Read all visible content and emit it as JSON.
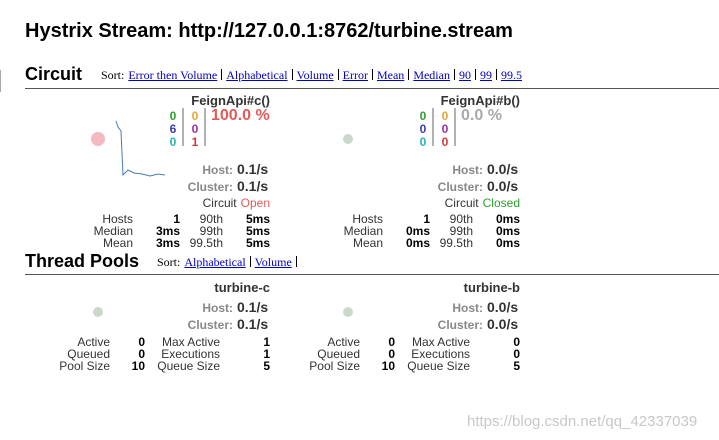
{
  "header": {
    "title": "Hystrix Stream: http://127.0.0.1:8762/turbine.stream"
  },
  "circuit": {
    "title": "Circuit",
    "sort_label": "Sort:",
    "sort_links": [
      "Error then Volume",
      "Alphabetical",
      "Volume",
      "Error",
      "Mean",
      "Median",
      "90",
      "99",
      "99.5"
    ],
    "cards": [
      {
        "name": "FeignApi#c()",
        "counts_a": [
          0,
          6,
          0
        ],
        "counts_b": [
          0,
          0,
          1
        ],
        "error_rate": "100.0 %",
        "host_label": "Host:",
        "host": "0.1/s",
        "cluster_label": "Cluster:",
        "cluster": "0.1/s",
        "circuit_label": "Circuit",
        "circuit_status": "Open",
        "stats": [
          [
            "Hosts",
            1,
            "90th",
            "5ms"
          ],
          [
            "Median",
            "3ms",
            "99th",
            "5ms"
          ],
          [
            "Mean",
            "3ms",
            "99.5th",
            "5ms"
          ]
        ]
      },
      {
        "name": "FeignApi#b()",
        "counts_a": [
          0,
          0,
          0
        ],
        "counts_b": [
          0,
          0,
          0
        ],
        "error_rate": "0.0 %",
        "host_label": "Host:",
        "host": "0.0/s",
        "cluster_label": "Cluster:",
        "cluster": "0.0/s",
        "circuit_label": "Circuit",
        "circuit_status": "Closed",
        "stats": [
          [
            "Hosts",
            1,
            "90th",
            "0ms"
          ],
          [
            "Median",
            "0ms",
            "99th",
            "0ms"
          ],
          [
            "Mean",
            "0ms",
            "99.5th",
            "0ms"
          ]
        ]
      }
    ]
  },
  "thread_pools": {
    "title": "Thread Pools",
    "sort_label": "Sort:",
    "sort_links": [
      "Alphabetical",
      "Volume"
    ],
    "cards": [
      {
        "name": "turbine-c",
        "host_label": "Host:",
        "host": "0.1/s",
        "cluster_label": "Cluster:",
        "cluster": "0.1/s",
        "stats": [
          [
            "Active",
            0,
            "Max Active",
            1
          ],
          [
            "Queued",
            0,
            "Executions",
            1
          ],
          [
            "Pool Size",
            10,
            "Queue Size",
            5
          ]
        ]
      },
      {
        "name": "turbine-b",
        "host_label": "Host:",
        "host": "0.0/s",
        "cluster_label": "Cluster:",
        "cluster": "0.0/s",
        "stats": [
          [
            "Active",
            0,
            "Max Active",
            0
          ],
          [
            "Queued",
            0,
            "Executions",
            0
          ],
          [
            "Pool Size",
            10,
            "Queue Size",
            5
          ]
        ]
      }
    ]
  },
  "watermark": "https://blog.csdn.net/qq_42337039"
}
